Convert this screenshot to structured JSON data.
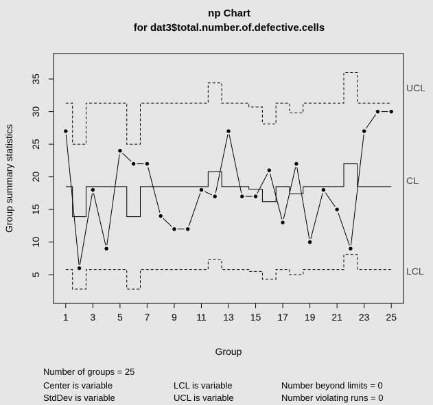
{
  "chart_data": {
    "type": "line",
    "title": "np Chart",
    "subtitle": "for dat3$total.number.of.defective.cells",
    "xlabel": "Group",
    "ylabel": "Group summary statistics",
    "xlim": [
      0.1,
      25.9
    ],
    "ylim": [
      0.6,
      38.9
    ],
    "x_ticks": [
      1,
      3,
      5,
      7,
      9,
      11,
      13,
      15,
      17,
      19,
      21,
      23,
      25
    ],
    "y_ticks": [
      5,
      10,
      15,
      20,
      25,
      30,
      35
    ],
    "groups": [
      1,
      2,
      3,
      4,
      5,
      6,
      7,
      8,
      9,
      10,
      11,
      12,
      13,
      14,
      15,
      16,
      17,
      18,
      19,
      20,
      21,
      22,
      23,
      24,
      25
    ],
    "values": [
      27,
      6,
      18,
      9,
      24,
      22,
      22,
      14,
      12,
      12,
      18,
      17,
      27,
      17,
      17,
      21,
      13,
      22,
      10,
      18,
      15,
      9,
      27,
      30,
      30
    ],
    "center": [
      18.5,
      13.9,
      18.5,
      18.5,
      18.5,
      13.9,
      18.5,
      18.5,
      18.5,
      18.5,
      18.5,
      20.8,
      18.5,
      18.5,
      18.1,
      16.2,
      18.5,
      17.4,
      18.5,
      18.5,
      18.5,
      22.0,
      18.5,
      18.5,
      18.5
    ],
    "ucl": [
      31.3,
      25.0,
      31.3,
      31.3,
      31.3,
      25.0,
      31.3,
      31.3,
      31.3,
      31.3,
      31.3,
      34.4,
      31.3,
      31.3,
      30.7,
      28.1,
      31.3,
      29.8,
      31.3,
      31.3,
      31.3,
      36.0,
      31.3,
      31.3,
      31.3
    ],
    "lcl": [
      5.8,
      2.8,
      5.8,
      5.8,
      5.8,
      2.8,
      5.8,
      5.8,
      5.8,
      5.8,
      5.8,
      7.3,
      5.8,
      5.8,
      5.5,
      4.3,
      5.8,
      5.0,
      5.8,
      5.8,
      5.8,
      8.1,
      5.8,
      5.8,
      5.8
    ],
    "limit_labels": {
      "ucl": "UCL",
      "cl": "CL",
      "lcl": "LCL"
    },
    "grid": false,
    "colors": {
      "background": "#e6e6e6",
      "line": "#000000",
      "limit_label": "#444444"
    }
  },
  "stats": {
    "groups": "Number of groups = 25",
    "center": "Center is variable",
    "stddev": "StdDev is variable",
    "lcl": "LCL is variable",
    "ucl": "UCL is variable",
    "beyond": "Number beyond limits = 0",
    "violating": "Number violating runs = 0"
  }
}
